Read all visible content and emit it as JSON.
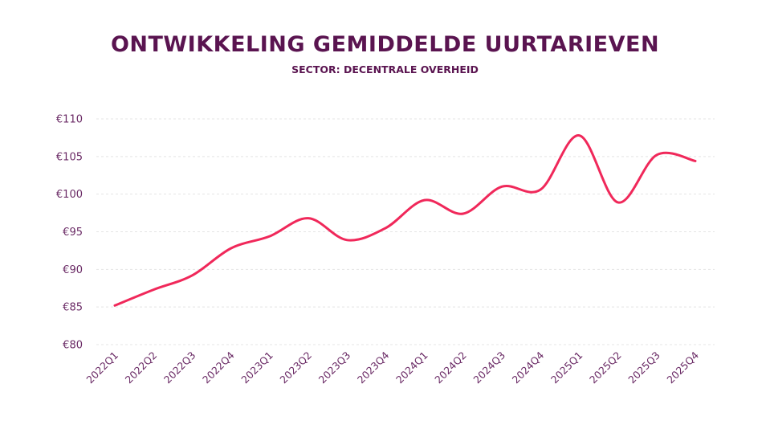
{
  "chart_data": {
    "type": "line",
    "title": "ONTWIKKELING GEMIDDELDE UURTARIEVEN",
    "subtitle": "SECTOR: DECENTRALE OVERHEID",
    "categories": [
      "2022Q1",
      "2022Q2",
      "2022Q3",
      "2022Q4",
      "2023Q1",
      "2023Q2",
      "2023Q3",
      "2023Q4",
      "2024Q1",
      "2024Q2",
      "2024Q3",
      "2024Q4",
      "2025Q1",
      "2025Q2",
      "2025Q3",
      "2025Q4"
    ],
    "series": [
      {
        "values": [
          85.2,
          87.3,
          89.2,
          92.8,
          94.4,
          96.8,
          93.9,
          95.5,
          99.2,
          97.4,
          101.0,
          100.6,
          107.8,
          98.9,
          105.2,
          104.4
        ],
        "color": "#f0285a"
      }
    ],
    "yticks": [
      "€80",
      "€85",
      "€90",
      "€95",
      "€100",
      "€105",
      "€110"
    ],
    "ylim": [
      80,
      110
    ],
    "grid": true,
    "xlabel": "",
    "ylabel": ""
  },
  "colors": {
    "title": "#5a1450",
    "line": "#f0285a",
    "grid": "#e4e4e4",
    "tick": "#6a2a65"
  }
}
